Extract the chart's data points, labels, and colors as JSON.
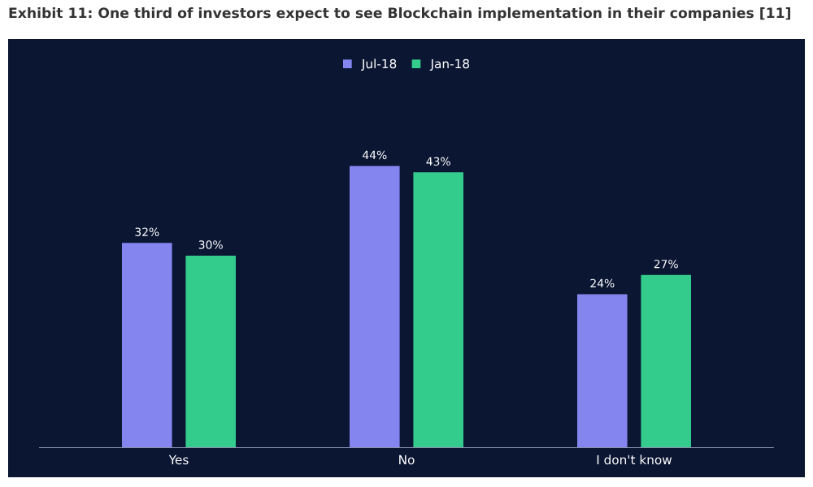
{
  "chart_data": {
    "type": "bar",
    "title": "Exhibit 11: One third of investors expect to see Blockchain implementation in their companies [11]",
    "categories": [
      "Yes",
      "No",
      "I don't know"
    ],
    "series": [
      {
        "name": "Jul-18",
        "color": "#8585f0",
        "values": [
          32,
          44,
          24
        ],
        "value_labels": [
          "32%",
          "44%",
          "24%"
        ]
      },
      {
        "name": "Jan-18",
        "color": "#33cc8c",
        "values": [
          30,
          43,
          27
        ],
        "value_labels": [
          "30%",
          "43%",
          "27%"
        ]
      }
    ],
    "legend": "top",
    "grid": false
  }
}
